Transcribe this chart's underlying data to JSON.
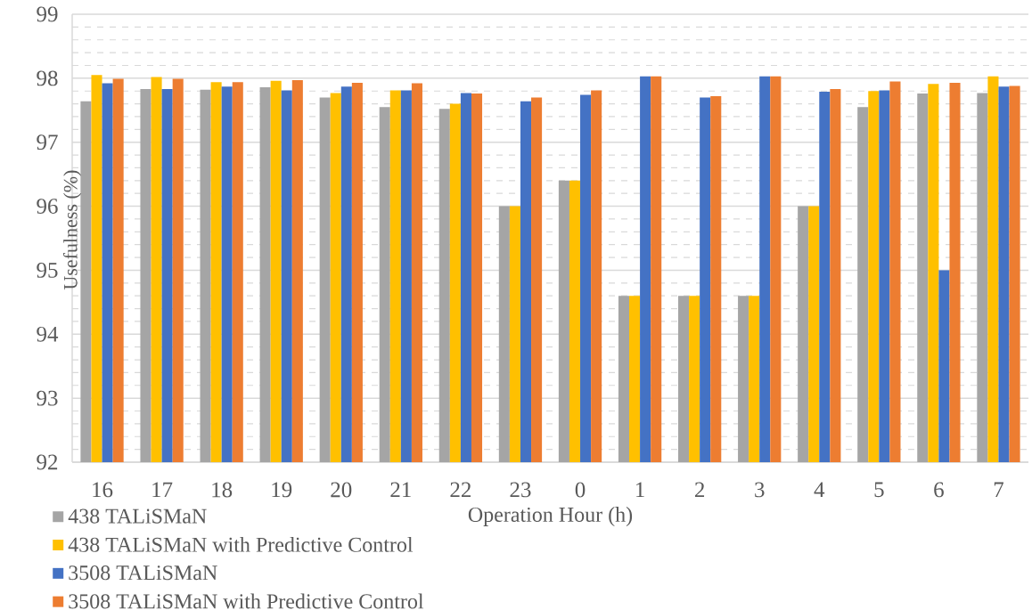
{
  "chart_data": {
    "type": "bar",
    "xlabel": "Operation Hour (h)",
    "ylabel": "Usefulness (%)",
    "categories": [
      "16",
      "17",
      "18",
      "19",
      "20",
      "21",
      "22",
      "23",
      "0",
      "1",
      "2",
      "3",
      "4",
      "5",
      "6",
      "7"
    ],
    "series": [
      {
        "name": "438 TALiSMaN",
        "color": "#a5a5a5",
        "values": [
          97.64,
          97.83,
          97.82,
          97.86,
          97.7,
          97.55,
          97.52,
          96.0,
          96.4,
          94.6,
          94.6,
          94.6,
          96.0,
          97.55,
          97.76,
          97.77
        ]
      },
      {
        "name": "438 TALiSMaN with Predictive Control",
        "color": "#ffc000",
        "values": [
          98.05,
          98.02,
          97.94,
          97.96,
          97.77,
          97.81,
          97.6,
          96.0,
          96.4,
          94.6,
          94.6,
          94.6,
          96.0,
          97.8,
          97.91,
          98.03
        ]
      },
      {
        "name": "3508 TALiSMaN",
        "color": "#4472c4",
        "values": [
          97.92,
          97.83,
          97.87,
          97.81,
          97.87,
          97.81,
          97.77,
          97.64,
          97.74,
          98.03,
          97.7,
          98.03,
          97.79,
          97.81,
          95.0,
          97.87
        ]
      },
      {
        "name": "3508 TALiSMaN with Predictive Control",
        "color": "#ed7d31",
        "values": [
          97.99,
          97.99,
          97.94,
          97.97,
          97.93,
          97.92,
          97.76,
          97.7,
          97.81,
          98.03,
          97.72,
          98.03,
          97.83,
          97.95,
          97.93,
          97.88
        ]
      }
    ],
    "ylim": [
      92,
      99
    ],
    "yticks": [
      92,
      93,
      94,
      95,
      96,
      97,
      98,
      99
    ],
    "grid": "y",
    "legend": "bottom left"
  }
}
